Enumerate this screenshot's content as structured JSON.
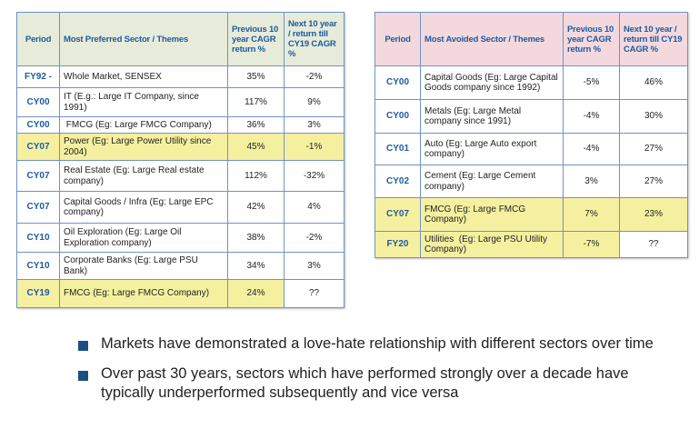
{
  "preferred_table": {
    "headers": [
      "Period",
      "Most Preferred Sector / Themes",
      "Previous 10 year CAGR return %",
      "Next 10 year / return till CY19 CAGR %"
    ],
    "rows": [
      {
        "period": "FY92 -",
        "sector": "Whole Market, SENSEX",
        "prev": "35%",
        "next": "-2%"
      },
      {
        "period": "CY00",
        "sector": "IT (E.g.: Large IT Company, since 1991)",
        "prev": "117%",
        "next": "9%"
      },
      {
        "period": "CY00",
        "sector": " FMCG (Eg: Large FMCG Company)",
        "prev": "36%",
        "next": "3%"
      },
      {
        "period": "CY07",
        "sector": "Power (Eg: Large Power Utility since 2004)",
        "prev": "45%",
        "next": "-1%"
      },
      {
        "period": "CY07",
        "sector": "Real Estate (Eg: Large Real estate company)",
        "prev": "112%",
        "next": "-32%"
      },
      {
        "period": "CY07",
        "sector": "Capital Goods / Infra (Eg: Large EPC company)",
        "prev": "42%",
        "next": "4%"
      },
      {
        "period": "CY10",
        "sector": "Oil Exploration (Eg: Large Oil Exploration company)",
        "prev": "38%",
        "next": "-2%"
      },
      {
        "period": "CY10",
        "sector": "Corporate Banks (Eg: Large PSU Bank)",
        "prev": "34%",
        "next": "3%"
      },
      {
        "period": "CY19",
        "sector": "FMCG (Eg: Large FMCG Company)",
        "prev": "24%",
        "next": "??"
      }
    ]
  },
  "avoided_table": {
    "headers": [
      "Period",
      "Most Avoided Sector / Themes",
      "Previous 10 year CAGR return %",
      "Next 10 year / return till CY19 CAGR %"
    ],
    "rows": [
      {
        "period": "CY00",
        "sector": "Capital Goods (Eg: Large Capital Goods company since 1992)",
        "prev": "-5%",
        "next": "46%"
      },
      {
        "period": "CY00",
        "sector": "Metals (Eg: Large Metal company since 1991)",
        "prev": "-4%",
        "next": "30%"
      },
      {
        "period": "CY01",
        "sector": "Auto (Eg: Large Auto export company)",
        "prev": "-4%",
        "next": "27%"
      },
      {
        "period": "CY02",
        "sector": "Cement (Eg: Large Cement company)",
        "prev": "3%",
        "next": "27%"
      },
      {
        "period": "CY07",
        "sector": "FMCG (Eg: Large FMCG Company)",
        "prev": "7%",
        "next": "23%"
      },
      {
        "period": "FY20",
        "sector": "Utilities  (Eg: Large PSU Utility Company)",
        "prev": "-7%",
        "next": "??"
      }
    ]
  },
  "bullets": [
    "Markets have demonstrated a love-hate relationship with different sectors over time",
    "Over past 30 years, sectors which have performed strongly over a decade have typically underperformed subsequently and vice versa"
  ],
  "colors": {
    "header_green": "#e6ecd9",
    "header_pink": "#f3d9dd",
    "highlight_yellow": "#f5f0a0",
    "accent_blue": "#1f5aa0",
    "bullet_blue": "#1b4f82"
  }
}
